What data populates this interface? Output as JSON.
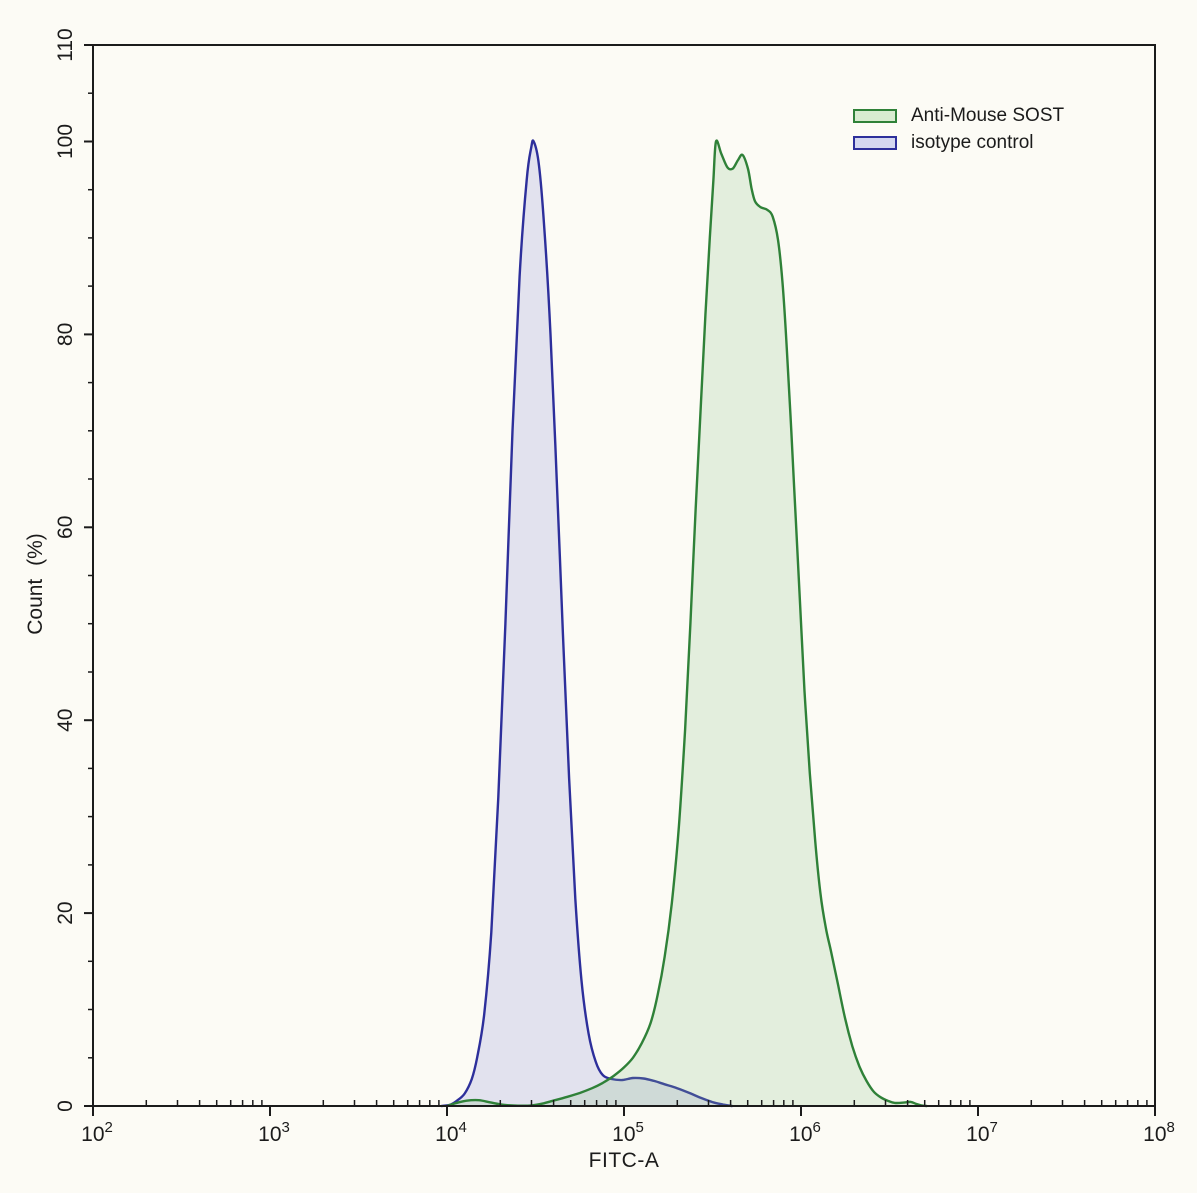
{
  "chart_data": {
    "type": "area",
    "title": "",
    "xlabel": "FITC-A",
    "ylabel": "Count (%)",
    "x_scale": "log10",
    "xlim_log10": [
      2,
      8
    ],
    "ylim": [
      0,
      110
    ],
    "x_major_ticks_log10": [
      2,
      3,
      4,
      5,
      6,
      7,
      8
    ],
    "x_tick_base": "10",
    "x_minor_ticks": "2-9 per decade, drawn inside axis",
    "y_major_ticks": [
      0,
      20,
      40,
      60,
      80,
      100,
      110
    ],
    "y_minor_step": 5,
    "grid": false,
    "legend_position": "top-right",
    "axis_color": "#1b1b1b",
    "background_color": "#fcfbf5",
    "legend": [
      {
        "label": "Anti-Mouse SOST",
        "stroke": "#2f8138",
        "fill": "#d8ecd0"
      },
      {
        "label": "isotype control",
        "stroke": "#2d2f9b",
        "fill": "#d4d7f0"
      }
    ],
    "series": [
      {
        "name": "isotype control",
        "stroke": "#2d2f9b",
        "fill": "rgba(110,115,210,0.18)",
        "peak_log10_x": 4.49,
        "peak_percent": 100,
        "points": [
          [
            3.97,
            0
          ],
          [
            4.02,
            0.15
          ],
          [
            4.06,
            0.6
          ],
          [
            4.1,
            1.3
          ],
          [
            4.14,
            2.8
          ],
          [
            4.17,
            5
          ],
          [
            4.21,
            9.5
          ],
          [
            4.25,
            18
          ],
          [
            4.29,
            32
          ],
          [
            4.33,
            50
          ],
          [
            4.37,
            70
          ],
          [
            4.41,
            86
          ],
          [
            4.45,
            96
          ],
          [
            4.475,
            99.3
          ],
          [
            4.49,
            100
          ],
          [
            4.52,
            97.5
          ],
          [
            4.55,
            91
          ],
          [
            4.585,
            80
          ],
          [
            4.62,
            65
          ],
          [
            4.655,
            49
          ],
          [
            4.69,
            34
          ],
          [
            4.725,
            21.5
          ],
          [
            4.76,
            13
          ],
          [
            4.8,
            7.5
          ],
          [
            4.84,
            4.6
          ],
          [
            4.88,
            3.2
          ],
          [
            4.93,
            2.8
          ],
          [
            4.99,
            2.7
          ],
          [
            5.05,
            2.9
          ],
          [
            5.11,
            2.85
          ],
          [
            5.17,
            2.6
          ],
          [
            5.23,
            2.25
          ],
          [
            5.3,
            1.85
          ],
          [
            5.37,
            1.35
          ],
          [
            5.44,
            0.8
          ],
          [
            5.5,
            0.4
          ],
          [
            5.56,
            0.15
          ],
          [
            5.61,
            0
          ]
        ]
      },
      {
        "name": "Anti-Mouse SOST",
        "stroke": "#2f8138",
        "fill": "rgba(140,190,135,0.22)",
        "peak_log10_x": 5.52,
        "peak_percent": 100,
        "points": [
          [
            4.0,
            0
          ],
          [
            4.05,
            0.3
          ],
          [
            4.11,
            0.55
          ],
          [
            4.18,
            0.6
          ],
          [
            4.25,
            0.35
          ],
          [
            4.32,
            0.12
          ],
          [
            4.4,
            0.03
          ],
          [
            4.48,
            0.06
          ],
          [
            4.54,
            0.25
          ],
          [
            4.61,
            0.6
          ],
          [
            4.68,
            0.95
          ],
          [
            4.75,
            1.35
          ],
          [
            4.82,
            1.85
          ],
          [
            4.88,
            2.4
          ],
          [
            4.94,
            3.1
          ],
          [
            5.0,
            4.0
          ],
          [
            5.05,
            5.0
          ],
          [
            5.1,
            6.5
          ],
          [
            5.15,
            8.6
          ],
          [
            5.19,
            11.5
          ],
          [
            5.23,
            15.5
          ],
          [
            5.27,
            21
          ],
          [
            5.31,
            29
          ],
          [
            5.345,
            39
          ],
          [
            5.375,
            50
          ],
          [
            5.405,
            62
          ],
          [
            5.435,
            73
          ],
          [
            5.46,
            82
          ],
          [
            5.485,
            90
          ],
          [
            5.505,
            96
          ],
          [
            5.52,
            100
          ],
          [
            5.55,
            98.7
          ],
          [
            5.585,
            97.3
          ],
          [
            5.615,
            97.2
          ],
          [
            5.645,
            98.1
          ],
          [
            5.67,
            98.6
          ],
          [
            5.7,
            97.2
          ],
          [
            5.72,
            95.2
          ],
          [
            5.74,
            93.8
          ],
          [
            5.77,
            93.2
          ],
          [
            5.81,
            92.9
          ],
          [
            5.84,
            92.2
          ],
          [
            5.87,
            89.8
          ],
          [
            5.895,
            85.5
          ],
          [
            5.92,
            78.5
          ],
          [
            5.945,
            70
          ],
          [
            5.97,
            61
          ],
          [
            5.995,
            52
          ],
          [
            6.02,
            43
          ],
          [
            6.05,
            34.5
          ],
          [
            6.08,
            27.5
          ],
          [
            6.11,
            22
          ],
          [
            6.14,
            18.5
          ],
          [
            6.17,
            16
          ],
          [
            6.21,
            12.5
          ],
          [
            6.25,
            9
          ],
          [
            6.29,
            6.2
          ],
          [
            6.33,
            4.1
          ],
          [
            6.37,
            2.6
          ],
          [
            6.41,
            1.5
          ],
          [
            6.45,
            0.9
          ],
          [
            6.49,
            0.55
          ],
          [
            6.53,
            0.32
          ],
          [
            6.58,
            0.35
          ],
          [
            6.62,
            0.42
          ],
          [
            6.65,
            0.22
          ],
          [
            6.68,
            0.06
          ],
          [
            6.71,
            0
          ]
        ]
      }
    ]
  }
}
